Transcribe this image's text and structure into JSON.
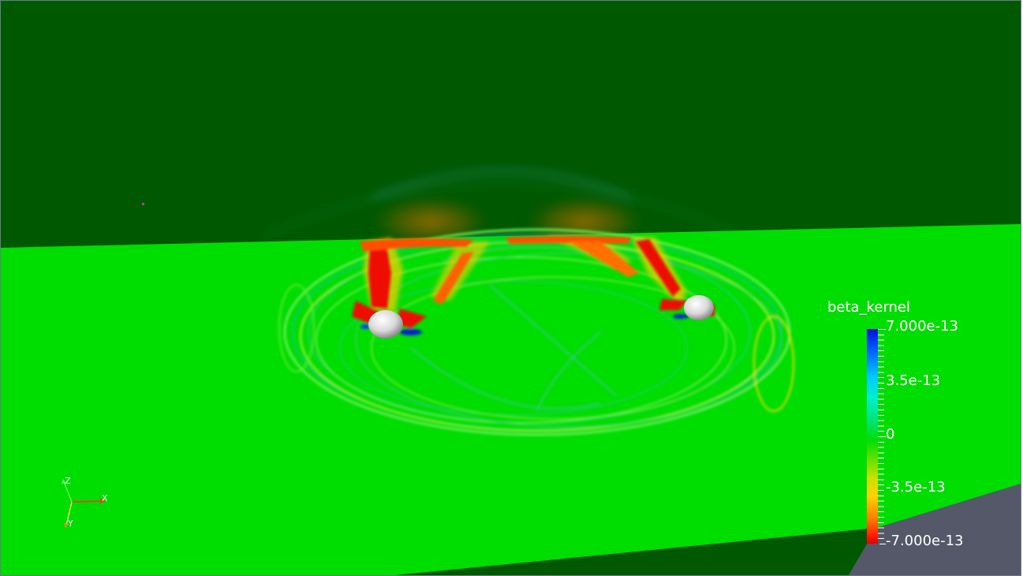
{
  "colorbar": {
    "title": "beta_kernel",
    "labels": [
      "7.000e-13",
      "3.5e-13",
      "0",
      "-3.5e-13",
      "-7.000e-13"
    ]
  },
  "axes": {
    "x": "X",
    "y": "Y",
    "z": "Z"
  },
  "colors": {
    "background": "#005800",
    "plane": "#00dd00",
    "side_face": "#555868",
    "sphere": "#dcdcdc"
  }
}
